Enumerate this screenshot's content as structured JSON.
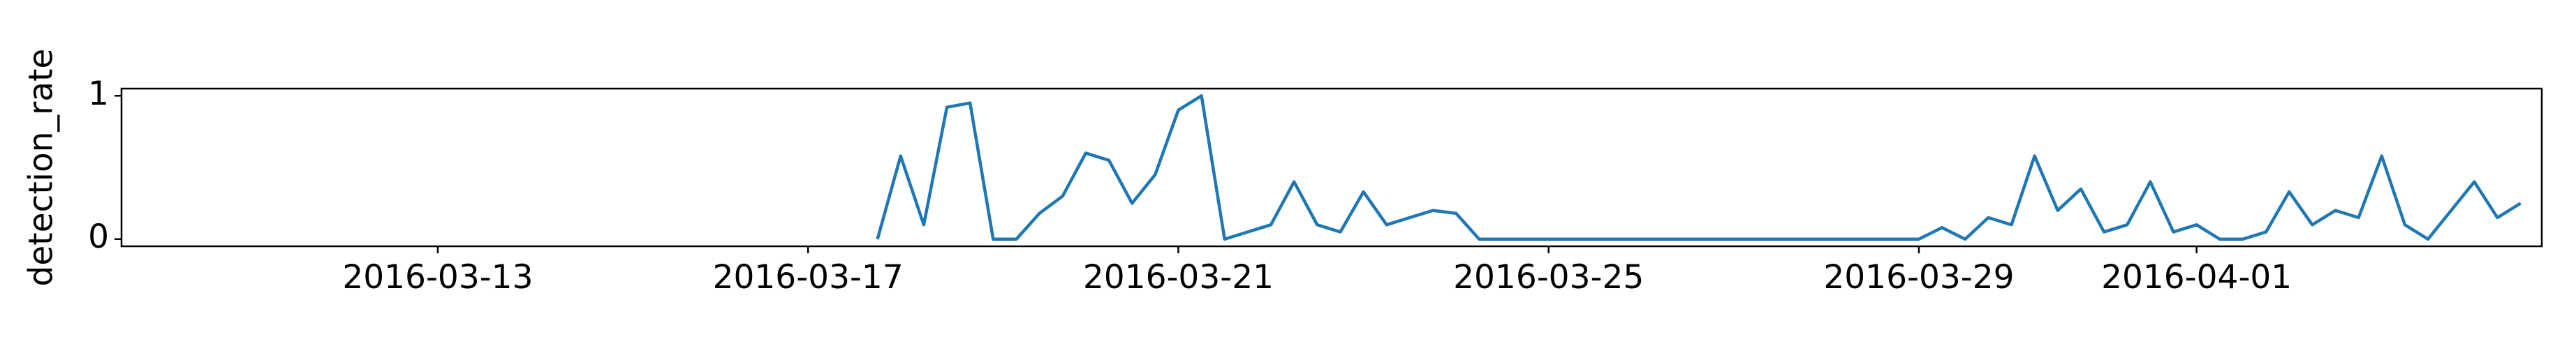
{
  "chart_data": {
    "type": "line",
    "ylabel": "detection_rate",
    "x": [
      "2016-03-17 18:00",
      "2016-03-18 00:00",
      "2016-03-18 06:00",
      "2016-03-18 12:00",
      "2016-03-18 18:00",
      "2016-03-19 00:00",
      "2016-03-19 06:00",
      "2016-03-19 12:00",
      "2016-03-19 18:00",
      "2016-03-20 00:00",
      "2016-03-20 06:00",
      "2016-03-20 12:00",
      "2016-03-20 18:00",
      "2016-03-21 00:00",
      "2016-03-21 06:00",
      "2016-03-21 12:00",
      "2016-03-21 18:00",
      "2016-03-22 00:00",
      "2016-03-22 06:00",
      "2016-03-22 12:00",
      "2016-03-22 18:00",
      "2016-03-23 00:00",
      "2016-03-23 06:00",
      "2016-03-23 12:00",
      "2016-03-23 18:00",
      "2016-03-24 00:00",
      "2016-03-24 06:00",
      "2016-03-24 12:00",
      "2016-03-24 18:00",
      "2016-03-25 00:00",
      "2016-03-25 06:00",
      "2016-03-25 12:00",
      "2016-03-25 18:00",
      "2016-03-26 00:00",
      "2016-03-26 06:00",
      "2016-03-26 12:00",
      "2016-03-26 18:00",
      "2016-03-27 00:00",
      "2016-03-27 06:00",
      "2016-03-27 12:00",
      "2016-03-27 18:00",
      "2016-03-28 00:00",
      "2016-03-28 06:00",
      "2016-03-28 12:00",
      "2016-03-28 18:00",
      "2016-03-29 00:00",
      "2016-03-29 06:00",
      "2016-03-29 12:00",
      "2016-03-29 18:00",
      "2016-03-30 00:00",
      "2016-03-30 06:00",
      "2016-03-30 12:00",
      "2016-03-30 18:00",
      "2016-03-31 00:00",
      "2016-03-31 06:00",
      "2016-03-31 12:00",
      "2016-03-31 18:00",
      "2016-04-01 00:00",
      "2016-04-01 06:00",
      "2016-04-01 12:00",
      "2016-04-01 18:00",
      "2016-04-02 00:00",
      "2016-04-02 06:00",
      "2016-04-02 12:00",
      "2016-04-02 18:00",
      "2016-04-03 00:00",
      "2016-04-03 06:00",
      "2016-04-03 12:00",
      "2016-04-03 18:00",
      "2016-04-04 00:00",
      "2016-04-04 06:00",
      "2016-04-04 12:00"
    ],
    "series": [
      {
        "color": "#1f77b4",
        "values": [
          0,
          0.58,
          0.1,
          0.92,
          0.95,
          0,
          0,
          0.18,
          0.3,
          0.6,
          0.55,
          0.25,
          0.45,
          0.9,
          1.0,
          0,
          0.05,
          0.1,
          0.4,
          0.1,
          0.05,
          0.33,
          0.1,
          0.15,
          0.2,
          0.18,
          0,
          0,
          0,
          0,
          0,
          0,
          0,
          0,
          0,
          0,
          0,
          0,
          0,
          0,
          0,
          0,
          0,
          0,
          0,
          0,
          0.08,
          0,
          0.15,
          0.1,
          0.58,
          0.2,
          0.35,
          0.05,
          0.1,
          0.4,
          0.05,
          0.1,
          0,
          0,
          0.05,
          0.33,
          0.1,
          0.2,
          0.15,
          0.58,
          0.1,
          0,
          0.2,
          0.4,
          0.15,
          0.25
        ]
      }
    ],
    "xlim": [
      "2016-03-09 14:00",
      "2016-04-04 17:30"
    ],
    "xticks": [
      "2016-03-13",
      "2016-03-17",
      "2016-03-21",
      "2016-03-25",
      "2016-03-29",
      "2016-04-01"
    ],
    "ylim": [
      -0.05,
      1.05
    ],
    "yticks": [
      0,
      1
    ]
  }
}
